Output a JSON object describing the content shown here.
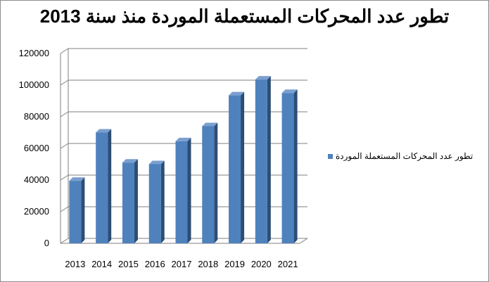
{
  "chart_data": {
    "type": "bar",
    "title": "تطور عدد المحركات المستعملة الموردة منذ سنة 2013",
    "categories": [
      "2013",
      "2014",
      "2015",
      "2016",
      "2017",
      "2018",
      "2019",
      "2020",
      "2021"
    ],
    "series": [
      {
        "name": "تطور عدد المحركات المستعملة الموردة",
        "values": [
          39500,
          70000,
          51000,
          50000,
          64500,
          74000,
          93500,
          103500,
          95000
        ]
      }
    ],
    "yticks": [
      "0",
      "20000",
      "40000",
      "60000",
      "80000",
      "100000",
      "120000"
    ],
    "ylim": [
      0,
      120000
    ],
    "xlabel": "",
    "ylabel": "",
    "grid": true,
    "legend_position": "right",
    "colors": {
      "bar_front": "#4f81bd",
      "bar_side": "#2c4d75",
      "bar_top": "#7a9fd0",
      "grid": "#7f7f7f"
    }
  }
}
